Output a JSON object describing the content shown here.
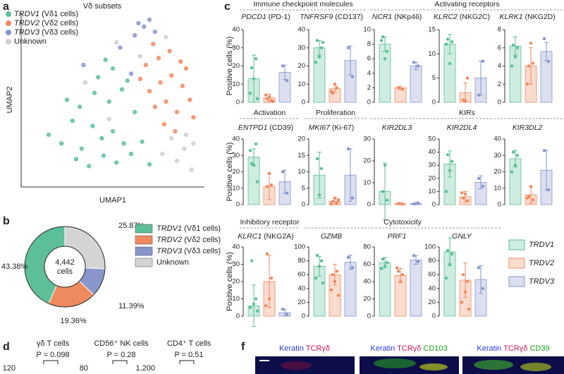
{
  "panels": [
    "a",
    "b",
    "c",
    "d",
    "f"
  ],
  "chart_data": [
    {
      "type": "scatter",
      "legend_title": "Vδ subsets",
      "xlabel": "UMAP1",
      "ylabel": "UMAP2",
      "xlim": [
        0,
        10
      ],
      "ylim": [
        0,
        10
      ],
      "series": [
        {
          "name": "TRDV1",
          "description": "(Vδ1 cells)",
          "color": "#5cbf98",
          "x": [
            1.5,
            2.2,
            2.8,
            3.3,
            3.9,
            4.4,
            5.0,
            5.6,
            2.5,
            3.2,
            4.0,
            4.8,
            5.5,
            6.2,
            3.0,
            3.7,
            4.5,
            5.2,
            6.0,
            6.6,
            4.2,
            5.0,
            5.8,
            4.6,
            7.0
          ],
          "y": [
            3.0,
            2.5,
            3.8,
            2.2,
            3.5,
            2.8,
            3.2,
            2.5,
            5.0,
            4.6,
            5.4,
            4.9,
            5.6,
            4.3,
            1.6,
            1.2,
            1.8,
            1.4,
            1.9,
            2.6,
            6.3,
            6.8,
            6.1,
            7.3,
            1.3
          ]
        },
        {
          "name": "TRDV2",
          "description": "(Vδ2 cells)",
          "color": "#ef8a5f",
          "x": [
            7.0,
            7.6,
            8.2,
            8.8,
            9.2,
            7.3,
            7.9,
            8.5,
            9.0,
            6.8,
            7.5,
            8.1,
            8.7,
            7.8,
            8.4,
            6.5,
            9.4,
            7.2
          ],
          "y": [
            5.5,
            6.0,
            6.4,
            5.8,
            5.0,
            4.6,
            4.9,
            4.3,
            6.8,
            7.0,
            7.4,
            7.8,
            7.2,
            3.6,
            3.2,
            6.2,
            4.0,
            8.2
          ]
        },
        {
          "name": "TRDV3",
          "description": "(Vδ3 cells)",
          "color": "#8796cc",
          "x": [
            6.4,
            6.7,
            7.0,
            6.2,
            5.4,
            7.3,
            3.4,
            6.0
          ],
          "y": [
            9.4,
            9.2,
            9.6,
            8.7,
            8.0,
            8.9,
            7.0,
            6.5
          ]
        },
        {
          "name": "Unknown",
          "description": null,
          "color": "#cfcfcf",
          "x": [
            8.5,
            8.9,
            9.3,
            8.2,
            9.0,
            7.7,
            6.5,
            5.2,
            3.5,
            4.8,
            7.9,
            9.4
          ],
          "y": [
            1.5,
            2.2,
            1.0,
            2.8,
            3.0,
            1.9,
            7.5,
            8.3,
            6.0,
            3.9,
            8.6,
            2.5
          ]
        }
      ]
    },
    {
      "type": "pie",
      "categories": [
        "TRDV1",
        "TRDV2",
        "TRDV3",
        "Unknown"
      ],
      "descriptions": [
        "(Vδ1 cells)",
        "(Vδ2 cells)",
        "(Vδ3 cells)",
        null
      ],
      "values": [
        43.38,
        19.36,
        11.39,
        25.87
      ],
      "value_labels": [
        "43.38%",
        "19.36%",
        "11.39%",
        "25.87%"
      ],
      "colors": [
        "#5cbf98",
        "#ef8a5f",
        "#8796cc",
        "#d4d4d4"
      ],
      "center_text": [
        "4,442",
        "cells"
      ]
    },
    {
      "type": "bar",
      "gene": "PDCD1",
      "protein": "(PD-1)",
      "ylim": [
        0,
        40
      ],
      "yticks": [
        0,
        10,
        20,
        30,
        40
      ],
      "series": [
        {
          "name": "TRDV1",
          "color": "#5cbf98",
          "values": [
            13
          ],
          "errors": [
            13
          ],
          "points": [
            19,
            24,
            13,
            5,
            2
          ]
        },
        {
          "name": "TRDV2",
          "color": "#ef8a5f",
          "values": [
            2.5
          ],
          "errors": [
            2
          ],
          "points": [
            2,
            1,
            3,
            4,
            0.5
          ]
        },
        {
          "name": "TRDV3",
          "color": "#8796cc",
          "values": [
            16.5
          ],
          "errors": [
            4
          ],
          "points": [
            20,
            12
          ]
        }
      ]
    },
    {
      "type": "bar",
      "gene": "TNFRSF9",
      "protein": "(CD137)",
      "ylim": [
        0,
        40
      ],
      "yticks": [
        0,
        10,
        20,
        30,
        40
      ],
      "series": [
        {
          "name": "TRDV1",
          "color": "#5cbf98",
          "values": [
            30
          ],
          "errors": [
            4
          ],
          "points": [
            34,
            30,
            25,
            22,
            33
          ]
        },
        {
          "name": "TRDV2",
          "color": "#ef8a5f",
          "values": [
            7.5
          ],
          "errors": [
            2
          ],
          "points": [
            5,
            8,
            10,
            6
          ]
        },
        {
          "name": "TRDV3",
          "color": "#8796cc",
          "values": [
            23
          ],
          "errors": [
            8
          ],
          "points": [
            30,
            14
          ]
        }
      ]
    },
    {
      "type": "bar",
      "gene": "NCR1",
      "protein": "(NKp46)",
      "ylim": [
        0,
        10
      ],
      "yticks": [
        0,
        2,
        4,
        6,
        8,
        10
      ],
      "series": [
        {
          "name": "TRDV1",
          "color": "#5cbf98",
          "values": [
            8
          ],
          "errors": [
            1
          ],
          "points": [
            9,
            7,
            6,
            8.5
          ]
        },
        {
          "name": "TRDV2",
          "color": "#ef8a5f",
          "values": [
            2
          ],
          "errors": [
            0.2
          ],
          "points": [
            2,
            1.8
          ]
        },
        {
          "name": "TRDV3",
          "color": "#8796cc",
          "values": [
            5
          ],
          "errors": [
            0.5
          ],
          "points": [
            5.5,
            5
          ]
        }
      ]
    },
    {
      "type": "bar",
      "gene": "KLRC2",
      "protein": "(NKG2C)",
      "ylim": [
        0,
        15
      ],
      "yticks": [
        0,
        5,
        10,
        15
      ],
      "series": [
        {
          "name": "TRDV1",
          "color": "#5cbf98",
          "values": [
            12
          ],
          "errors": [
            2
          ],
          "points": [
            13,
            12.5,
            8,
            12
          ]
        },
        {
          "name": "TRDV2",
          "color": "#ef8a5f",
          "values": [
            2
          ],
          "errors": [
            2
          ],
          "points": [
            0.5,
            5,
            0.3
          ]
        },
        {
          "name": "TRDV3",
          "color": "#8796cc",
          "values": [
            5
          ],
          "errors": [
            3.5
          ],
          "points": [
            1.5,
            8.5
          ]
        }
      ]
    },
    {
      "type": "bar",
      "gene": "KLRK1",
      "protein": "(NKG2D)",
      "ylim": [
        0,
        8
      ],
      "yticks": [
        0,
        2,
        4,
        6,
        8
      ],
      "series": [
        {
          "name": "TRDV1",
          "color": "#5cbf98",
          "values": [
            6.2
          ],
          "errors": [
            1
          ],
          "points": [
            6.3,
            6,
            5,
            4
          ]
        },
        {
          "name": "TRDV2",
          "color": "#ef8a5f",
          "values": [
            4
          ],
          "errors": [
            2
          ],
          "points": [
            4,
            4.3,
            6.5,
            2
          ]
        },
        {
          "name": "TRDV3",
          "color": "#8796cc",
          "values": [
            5.6
          ],
          "errors": [
            1
          ],
          "points": [
            7,
            4.5
          ]
        }
      ]
    },
    {
      "type": "bar",
      "gene": "ENTPD1",
      "protein": "(CD39)",
      "ylim": [
        0,
        40
      ],
      "yticks": [
        0,
        10,
        20,
        30,
        40
      ],
      "series": [
        {
          "name": "TRDV1",
          "color": "#5cbf98",
          "values": [
            29
          ],
          "errors": [
            5
          ],
          "points": [
            25,
            37,
            24,
            33,
            14
          ]
        },
        {
          "name": "TRDV2",
          "color": "#ef8a5f",
          "values": [
            11
          ],
          "errors": [
            8
          ],
          "points": [
            11,
            12,
            19
          ]
        },
        {
          "name": "TRDV3",
          "color": "#8796cc",
          "values": [
            14
          ],
          "errors": [
            7
          ],
          "points": [
            20,
            7
          ]
        }
      ]
    },
    {
      "type": "bar",
      "gene": "MKI67",
      "protein": "(Ki-67)",
      "ylim": [
        0,
        20
      ],
      "yticks": [
        0,
        5,
        10,
        15,
        20
      ],
      "series": [
        {
          "name": "TRDV1",
          "color": "#5cbf98",
          "values": [
            9
          ],
          "errors": [
            7
          ],
          "points": [
            14,
            11,
            3
          ]
        },
        {
          "name": "TRDV2",
          "color": "#ef8a5f",
          "values": [
            1
          ],
          "errors": [
            1
          ],
          "points": [
            1,
            0.5,
            2,
            0.2,
            1.5
          ]
        },
        {
          "name": "TRDV3",
          "color": "#8796cc",
          "values": [
            9
          ],
          "errors": [
            8
          ],
          "points": [
            17,
            2
          ]
        }
      ]
    },
    {
      "type": "bar",
      "gene": "KIR2DL3",
      "protein": null,
      "ylim": [
        0,
        30
      ],
      "yticks": [
        0,
        10,
        20,
        30
      ],
      "series": [
        {
          "name": "TRDV1",
          "color": "#5cbf98",
          "values": [
            6
          ],
          "errors": [
            13
          ],
          "points": [
            6,
            2,
            18
          ]
        },
        {
          "name": "TRDV2",
          "color": "#ef8a5f",
          "values": [
            0.5
          ],
          "errors": [
            0.5
          ],
          "points": [
            0.5,
            0.2
          ]
        },
        {
          "name": "TRDV3",
          "color": "#8796cc",
          "values": [
            0.5
          ],
          "errors": [
            0.5
          ],
          "points": [
            0.3,
            0.8
          ]
        }
      ]
    },
    {
      "type": "bar",
      "gene": "KIR2DL4",
      "protein": null,
      "ylim": [
        0,
        50
      ],
      "yticks": [
        0,
        10,
        20,
        30,
        40,
        50
      ],
      "series": [
        {
          "name": "TRDV1",
          "color": "#5cbf98",
          "values": [
            31
          ],
          "errors": [
            10
          ],
          "points": [
            38,
            33,
            26,
            10
          ]
        },
        {
          "name": "TRDV2",
          "color": "#ef8a5f",
          "values": [
            6
          ],
          "errors": [
            4
          ],
          "points": [
            5,
            3,
            8,
            9
          ]
        },
        {
          "name": "TRDV3",
          "color": "#8796cc",
          "values": [
            17
          ],
          "errors": [
            5
          ],
          "points": [
            20,
            14
          ]
        }
      ]
    },
    {
      "type": "bar",
      "gene": "KIR3DL2",
      "protein": null,
      "ylim": [
        0,
        40
      ],
      "yticks": [
        0,
        10,
        20,
        30,
        40
      ],
      "series": [
        {
          "name": "TRDV1",
          "color": "#5cbf98",
          "values": [
            28
          ],
          "errors": [
            5
          ],
          "points": [
            32,
            30,
            24,
            20
          ]
        },
        {
          "name": "TRDV2",
          "color": "#ef8a5f",
          "values": [
            6
          ],
          "errors": [
            5
          ],
          "points": [
            5,
            3,
            11,
            4
          ]
        },
        {
          "name": "TRDV3",
          "color": "#8796cc",
          "values": [
            21
          ],
          "errors": [
            12
          ],
          "points": [
            33,
            9
          ]
        }
      ]
    },
    {
      "type": "bar",
      "gene": "KLRC1",
      "protein": "(NKG2A)",
      "ylim": [
        0,
        40
      ],
      "yticks": [
        0,
        10,
        20,
        30,
        40
      ],
      "series": [
        {
          "name": "TRDV1",
          "color": "#5cbf98",
          "values": [
            6
          ],
          "errors": [
            12
          ],
          "points": [
            32,
            10,
            7,
            5,
            3
          ]
        },
        {
          "name": "TRDV2",
          "color": "#ef8a5f",
          "values": [
            20
          ],
          "errors": [
            15
          ],
          "points": [
            36,
            22,
            10,
            6
          ]
        },
        {
          "name": "TRDV3",
          "color": "#8796cc",
          "values": [
            2
          ],
          "errors": [
            2
          ],
          "points": [
            4,
            1
          ]
        }
      ]
    },
    {
      "type": "bar",
      "gene": "GZMB",
      "protein": null,
      "ylim": [
        0,
        100
      ],
      "yticks": [
        0,
        20,
        40,
        60,
        80,
        100
      ],
      "series": [
        {
          "name": "TRDV1",
          "color": "#5cbf98",
          "values": [
            72
          ],
          "errors": [
            14
          ],
          "points": [
            88,
            80,
            72,
            55,
            48
          ]
        },
        {
          "name": "TRDV2",
          "color": "#ef8a5f",
          "values": [
            60
          ],
          "errors": [
            15
          ],
          "points": [
            60,
            65,
            50,
            38,
            30
          ]
        },
        {
          "name": "TRDV3",
          "color": "#8796cc",
          "values": [
            78
          ],
          "errors": [
            10
          ],
          "points": [
            85,
            70
          ]
        }
      ]
    },
    {
      "type": "bar",
      "gene": "PRF1",
      "protein": null,
      "ylim": [
        0,
        80
      ],
      "yticks": [
        0,
        20,
        40,
        60,
        80
      ],
      "series": [
        {
          "name": "TRDV1",
          "color": "#5cbf98",
          "values": [
            62
          ],
          "errors": [
            6
          ],
          "points": [
            66,
            62,
            58,
            55
          ]
        },
        {
          "name": "TRDV2",
          "color": "#ef8a5f",
          "values": [
            47
          ],
          "errors": [
            8
          ],
          "points": [
            52,
            48,
            40,
            56
          ]
        },
        {
          "name": "TRDV3",
          "color": "#8796cc",
          "values": [
            65
          ],
          "errors": [
            5
          ],
          "points": [
            70,
            63
          ]
        }
      ]
    },
    {
      "type": "bar",
      "gene": "GNLY",
      "protein": null,
      "ylim": [
        0,
        100
      ],
      "yticks": [
        0,
        20,
        40,
        60,
        80,
        100
      ],
      "series": [
        {
          "name": "TRDV1",
          "color": "#5cbf98",
          "values": [
            93
          ],
          "errors": [
            20
          ],
          "points": [
            95,
            90,
            75,
            55
          ]
        },
        {
          "name": "TRDV2",
          "color": "#ef8a5f",
          "values": [
            52
          ],
          "errors": [
            25
          ],
          "points": [
            60,
            50,
            35,
            20,
            10
          ]
        },
        {
          "name": "TRDV3",
          "color": "#8796cc",
          "values": [
            53
          ],
          "errors": [
            20
          ],
          "points": [
            70,
            40
          ]
        }
      ]
    }
  ],
  "panel_c_ylabel": "Positive cells (%)",
  "panel_c_groups": [
    "Immune checkpoint molecules",
    "Activating receptors",
    "Activation",
    "Proliferation",
    "KIRs",
    "Inhibitory receptor",
    "Cytotoxicity"
  ],
  "panel_d": [
    {
      "title": "γδ T cells",
      "p": "P = 0.098",
      "tick": "120"
    },
    {
      "title": "CD56⁺ NK cells",
      "p": "P = 0.28",
      "tick": "80"
    },
    {
      "title": "CD4⁺ T cells",
      "p": "P = 0.51",
      "tick": "1,200"
    }
  ],
  "panel_f": [
    [
      {
        "text": "Keratin",
        "color": "#2b3bd6"
      },
      {
        "text": "TCRγδ",
        "color": "#c2185b"
      }
    ],
    [
      {
        "text": "Keratin",
        "color": "#2b3bd6"
      },
      {
        "text": "TCRγδ",
        "color": "#c2185b"
      },
      {
        "text": "CD103",
        "color": "#18a01a"
      }
    ],
    [
      {
        "text": "Keratin",
        "color": "#2b3bd6"
      },
      {
        "text": "TCRγδ",
        "color": "#c2185b"
      },
      {
        "text": "CD39",
        "color": "#18a01a"
      }
    ]
  ]
}
